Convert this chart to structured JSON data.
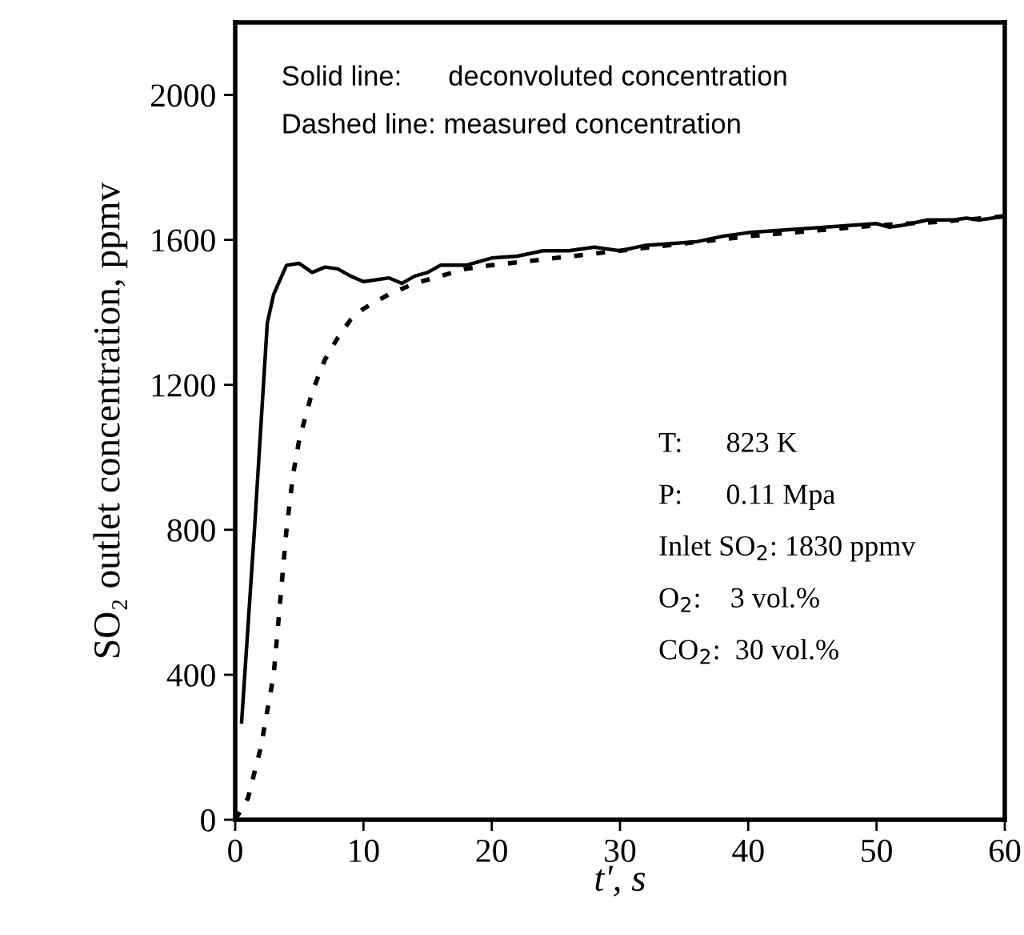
{
  "chart_data": {
    "type": "line",
    "xlabel": "t', s",
    "ylabel": "SO₂ outlet concentration, ppmv",
    "xlim": [
      0,
      60
    ],
    "ylim": [
      0,
      2200
    ],
    "xticks": [
      0,
      10,
      20,
      30,
      40,
      50,
      60
    ],
    "yticks": [
      0,
      400,
      800,
      1200,
      1600,
      2000
    ],
    "grid": false,
    "legend": false,
    "marker": "none",
    "series": [
      {
        "color": "#000000",
        "line_style": "solid",
        "x": [
          0.5,
          1.5,
          2.5,
          3,
          4,
          5,
          6,
          7,
          8,
          9,
          10,
          11,
          12,
          13,
          14,
          15,
          16,
          18,
          20,
          22,
          24,
          26,
          28,
          30,
          32,
          34,
          36,
          38,
          40,
          42,
          44,
          46,
          48,
          50,
          51,
          52,
          54,
          56,
          57,
          58,
          60
        ],
        "values": [
          270,
          800,
          1370,
          1450,
          1530,
          1535,
          1510,
          1525,
          1520,
          1500,
          1485,
          1490,
          1495,
          1480,
          1500,
          1510,
          1530,
          1530,
          1550,
          1555,
          1570,
          1570,
          1580,
          1570,
          1585,
          1590,
          1595,
          1610,
          1620,
          1625,
          1630,
          1635,
          1640,
          1645,
          1635,
          1640,
          1655,
          1655,
          1660,
          1655,
          1665
        ]
      },
      {
        "color": "#000000",
        "line_style": "dotted",
        "x": [
          0,
          1,
          2,
          3,
          3.5,
          4,
          4.5,
          5,
          6,
          7,
          8,
          9,
          10,
          12,
          14,
          16,
          18,
          20,
          25,
          30,
          35,
          40,
          45,
          50,
          55,
          60
        ],
        "values": [
          0,
          60,
          200,
          400,
          600,
          800,
          950,
          1050,
          1180,
          1270,
          1330,
          1380,
          1410,
          1450,
          1480,
          1500,
          1520,
          1530,
          1550,
          1570,
          1590,
          1610,
          1625,
          1640,
          1650,
          1665
        ]
      }
    ],
    "annotations": [
      "Solid line:      deconvoluted concentration",
      "Dashed line: measured concentration",
      "T:      823 K",
      "P:      0.11 Mpa",
      "Inlet SO$_{2}$: 1830 ppmv",
      "O$_{2}$:    3 vol.%",
      "CO$_{2}$:  30 vol.%"
    ]
  }
}
